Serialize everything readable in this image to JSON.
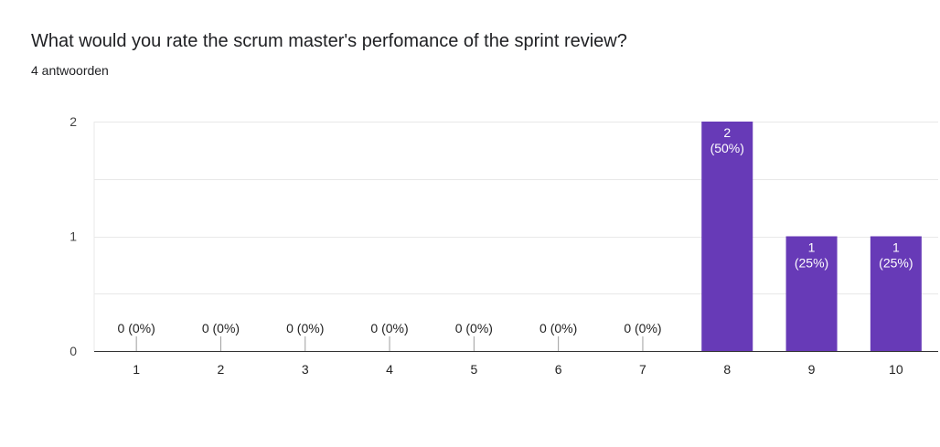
{
  "header": {
    "title": "What would you rate the scrum master's perfomance of the sprint review?",
    "subtitle": "4 antwoorden"
  },
  "colors": {
    "bar": "#673ab7",
    "grid": "#e8e8e8",
    "axis": "#333333"
  },
  "chart_data": {
    "type": "bar",
    "title": "What would you rate the scrum master's perfomance of the sprint review?",
    "xlabel": "",
    "ylabel": "",
    "categories": [
      "1",
      "2",
      "3",
      "4",
      "5",
      "6",
      "7",
      "8",
      "9",
      "10"
    ],
    "values": [
      0,
      0,
      0,
      0,
      0,
      0,
      0,
      2,
      1,
      1
    ],
    "data_labels": [
      "0 (0%)",
      "0 (0%)",
      "0 (0%)",
      "0 (0%)",
      "0 (0%)",
      "0 (0%)",
      "0 (0%)",
      "2\n(50%)",
      "1\n(25%)",
      "1\n(25%)"
    ],
    "yticks": [
      0,
      1,
      2
    ],
    "ylim": [
      0,
      2
    ],
    "grid": true,
    "legend": "none"
  }
}
